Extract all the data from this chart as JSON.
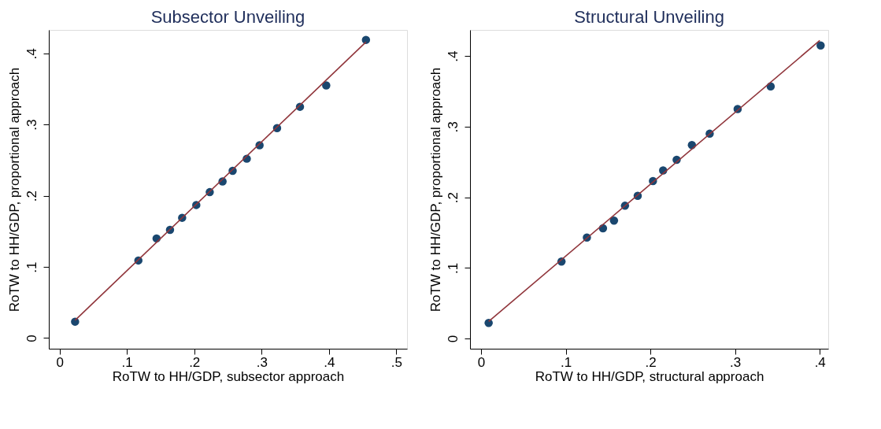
{
  "chart_data": [
    {
      "type": "scatter",
      "title": "Subsector Unveiling",
      "xlabel": "RoTW to HH/GDP, subsector approach",
      "ylabel": "RoTW to HH/GDP, proportional approach",
      "xlim": [
        -0.016,
        0.516
      ],
      "ylim": [
        -0.015,
        0.433
      ],
      "xticks": [
        0,
        {
          "value": 0.1,
          "label": ".1"
        },
        {
          "value": 0.2,
          "label": ".2"
        },
        {
          "value": 0.3,
          "label": ".3"
        },
        {
          "value": 0.4,
          "label": ".4"
        },
        {
          "value": 0.5,
          "label": ".5"
        }
      ],
      "yticks": [
        0,
        {
          "value": 0.1,
          "label": ".1"
        },
        {
          "value": 0.2,
          "label": ".2"
        },
        {
          "value": 0.3,
          "label": ".3"
        },
        {
          "value": 0.4,
          "label": ".4"
        }
      ],
      "grid": false,
      "legend": false,
      "series": [
        {
          "color": "#1a476f",
          "marker": "circle",
          "x": [
            0.023,
            0.117,
            0.144,
            0.164,
            0.182,
            0.203,
            0.223,
            0.242,
            0.257,
            0.278,
            0.297,
            0.323,
            0.357,
            0.396,
            0.455
          ],
          "values": [
            0.023,
            0.109,
            0.14,
            0.152,
            0.169,
            0.187,
            0.205,
            0.22,
            0.235,
            0.252,
            0.271,
            0.295,
            0.325,
            0.355,
            0.419
          ]
        },
        {
          "type": "line",
          "color": "#90353b",
          "line_style": "solid",
          "x": [
            0.023,
            0.455
          ],
          "values": [
            0.025,
            0.416
          ]
        }
      ]
    },
    {
      "type": "scatter",
      "title": "Structural Unveiling",
      "xlabel": "RoTW to HH/GDP, structural approach",
      "ylabel": "RoTW to HH/GDP, proportional approach",
      "xlim": [
        -0.013,
        0.41
      ],
      "ylim": [
        -0.0145,
        0.437
      ],
      "xticks": [
        0,
        {
          "value": 0.1,
          "label": ".1"
        },
        {
          "value": 0.2,
          "label": ".2"
        },
        {
          "value": 0.3,
          "label": ".3"
        },
        {
          "value": 0.4,
          "label": ".4"
        }
      ],
      "yticks": [
        0,
        {
          "value": 0.1,
          "label": ".1"
        },
        {
          "value": 0.2,
          "label": ".2"
        },
        {
          "value": 0.3,
          "label": ".3"
        },
        {
          "value": 0.4,
          "label": ".4"
        }
      ],
      "grid": false,
      "legend": false,
      "series": [
        {
          "color": "#1a476f",
          "marker": "circle",
          "x": [
            0.009,
            0.095,
            0.125,
            0.144,
            0.157,
            0.17,
            0.185,
            0.203,
            0.215,
            0.231,
            0.249,
            0.27,
            0.303,
            0.342,
            0.401
          ],
          "values": [
            0.022,
            0.109,
            0.143,
            0.156,
            0.167,
            0.188,
            0.202,
            0.223,
            0.238,
            0.253,
            0.274,
            0.29,
            0.325,
            0.357,
            0.415
          ]
        },
        {
          "type": "line",
          "color": "#90353b",
          "line_style": "solid",
          "x": [
            0.009,
            0.4
          ],
          "values": [
            0.024,
            0.422
          ]
        }
      ]
    }
  ]
}
